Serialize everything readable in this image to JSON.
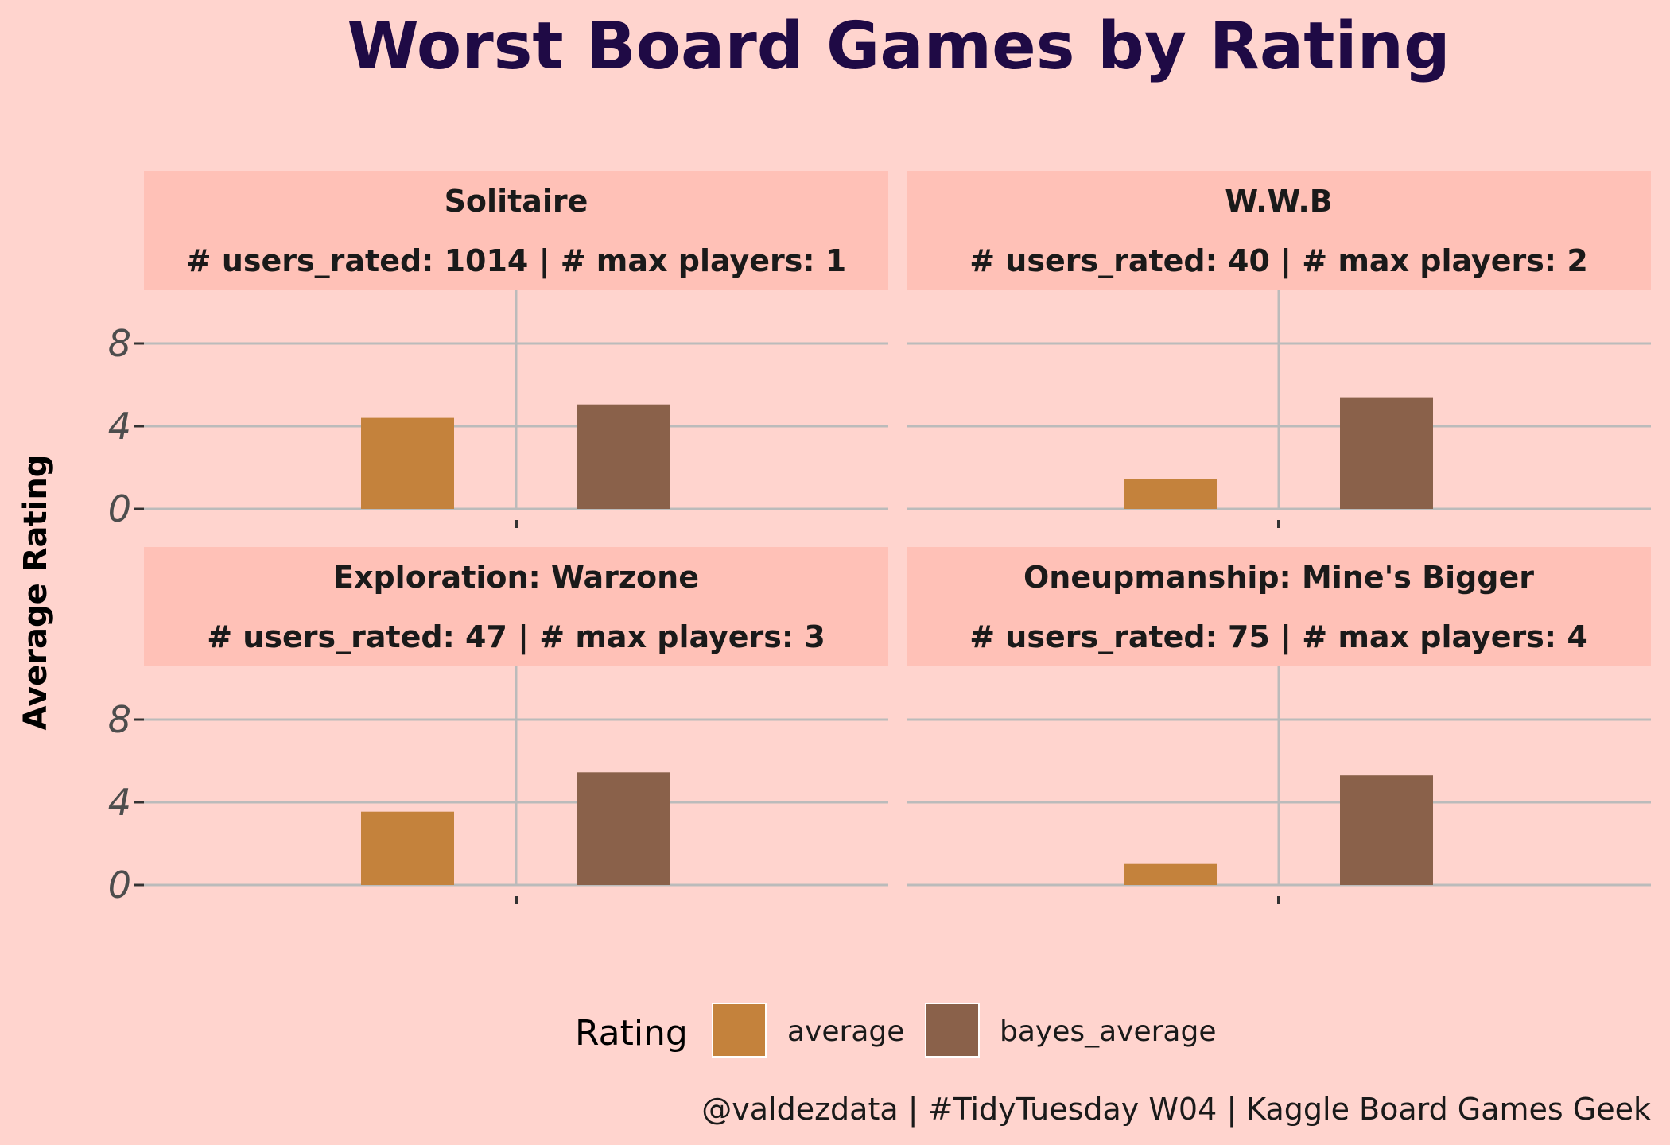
{
  "chart_data": {
    "type": "bar",
    "title": "Worst Board Games by Rating",
    "ylabel": "Average Rating",
    "ylim": [
      0,
      10
    ],
    "yticks": [
      0,
      4,
      8
    ],
    "grid": true,
    "legend": {
      "title": "Rating",
      "placement": "bottom",
      "entries": [
        {
          "name": "average",
          "color": "#C4823C"
        },
        {
          "name": "bayes_average",
          "color": "#8A614A"
        }
      ]
    },
    "caption": "@valdezdata | #TidyTuesday W04 | Kaggle Board Games Geek",
    "facets": [
      {
        "title": "Solitaire",
        "subtitle": "# users_rated: 1014 | # max players: 1",
        "values": {
          "average": 4.4,
          "bayes_average": 5.05
        }
      },
      {
        "title": "W.W.B",
        "subtitle": "# users_rated: 40 | # max players: 2",
        "values": {
          "average": 1.45,
          "bayes_average": 5.4
        }
      },
      {
        "title": "Exploration: Warzone",
        "subtitle": "# users_rated: 47 | # max players: 3",
        "values": {
          "average": 3.55,
          "bayes_average": 5.45
        }
      },
      {
        "title": "Oneupmanship: Mine's Bigger",
        "subtitle": "# users_rated: 75 | # max players: 4",
        "values": {
          "average": 1.05,
          "bayes_average": 5.3
        }
      }
    ]
  }
}
